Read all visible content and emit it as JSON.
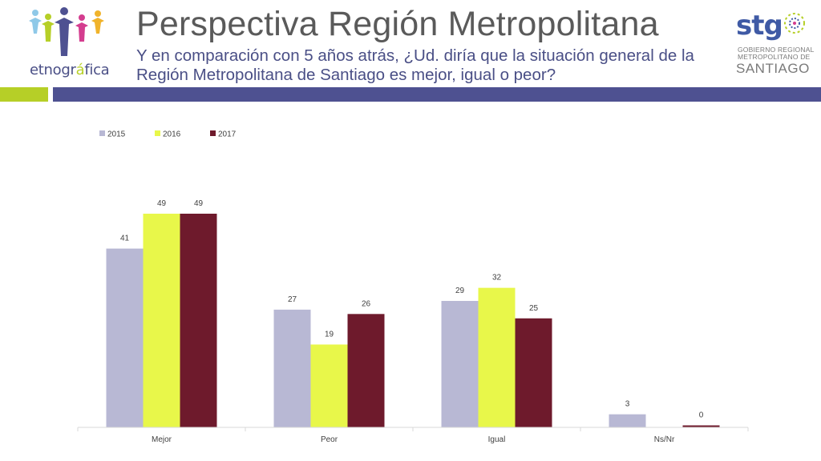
{
  "header": {
    "title": "Perspectiva Región Metropolitana",
    "subtitle": "Y en comparación con 5 años atrás, ¿Ud. diría que la situación general de la Región Metropolitana de Santiago es mejor, igual o peor?"
  },
  "logo_left": {
    "name_part1": "etnogr",
    "name_accent": "á",
    "name_part2": "fica"
  },
  "logo_right": {
    "mark": "stg",
    "line1": "GOBIERNO REGIONAL",
    "line2": "METROPOLITANO DE",
    "line3": "SANTIAGO"
  },
  "colors": {
    "accent_green": "#b6cf27",
    "accent_blue": "#4e5191"
  },
  "chart_data": {
    "type": "bar",
    "categories": [
      "Mejor",
      "Peor",
      "Igual",
      "Ns/Nr"
    ],
    "series": [
      {
        "name": "2015",
        "color": "#b8b8d4",
        "values": [
          41,
          27,
          29,
          3
        ]
      },
      {
        "name": "2016",
        "color": "#e8f74a",
        "values": [
          49,
          19,
          32,
          null
        ]
      },
      {
        "name": "2017",
        "color": "#6e1a2c",
        "values": [
          49,
          26,
          25,
          0
        ]
      }
    ],
    "ylim": [
      0,
      55
    ],
    "grid": false,
    "legend": "top-left",
    "data_labels": true
  }
}
